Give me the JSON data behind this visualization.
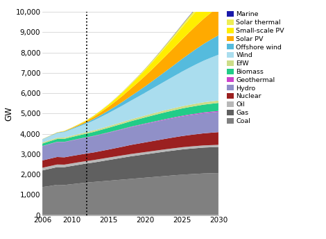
{
  "years": [
    2006,
    2007,
    2008,
    2009,
    2010,
    2011,
    2012,
    2013,
    2014,
    2015,
    2016,
    2017,
    2018,
    2019,
    2020,
    2021,
    2022,
    2023,
    2024,
    2025,
    2026,
    2027,
    2028,
    2029,
    2030
  ],
  "series": {
    "Coal": [
      1380,
      1430,
      1490,
      1480,
      1520,
      1560,
      1600,
      1630,
      1660,
      1690,
      1720,
      1750,
      1780,
      1810,
      1840,
      1870,
      1900,
      1930,
      1960,
      1990,
      2010,
      2030,
      2050,
      2060,
      2070
    ],
    "Gas": [
      820,
      850,
      870,
      880,
      900,
      920,
      940,
      960,
      990,
      1020,
      1050,
      1080,
      1110,
      1130,
      1150,
      1170,
      1190,
      1210,
      1225,
      1240,
      1255,
      1265,
      1275,
      1280,
      1285
    ],
    "Oil": [
      130,
      130,
      130,
      125,
      125,
      125,
      120,
      120,
      120,
      120,
      118,
      116,
      115,
      114,
      113,
      112,
      111,
      110,
      110,
      109,
      108,
      107,
      106,
      105,
      104
    ],
    "Nuclear": [
      360,
      365,
      370,
      360,
      365,
      365,
      370,
      375,
      385,
      395,
      410,
      425,
      445,
      460,
      475,
      490,
      505,
      520,
      535,
      550,
      565,
      580,
      595,
      610,
      625
    ],
    "Hydro": [
      700,
      720,
      735,
      748,
      760,
      775,
      785,
      800,
      815,
      830,
      845,
      860,
      875,
      890,
      905,
      918,
      930,
      942,
      952,
      962,
      972,
      980,
      988,
      994,
      999
    ],
    "Geothermal": [
      10,
      11,
      12,
      12,
      13,
      14,
      14,
      15,
      16,
      17,
      18,
      20,
      21,
      23,
      25,
      27,
      29,
      31,
      33,
      35,
      37,
      39,
      41,
      43,
      45
    ],
    "Biomass": [
      120,
      130,
      140,
      150,
      160,
      170,
      180,
      195,
      210,
      225,
      240,
      255,
      270,
      285,
      300,
      315,
      328,
      340,
      350,
      360,
      368,
      376,
      383,
      389,
      394
    ],
    "EfW": [
      55,
      58,
      61,
      63,
      65,
      68,
      70,
      73,
      76,
      79,
      82,
      85,
      88,
      91,
      94,
      97,
      100,
      103,
      106,
      109,
      111,
      113,
      115,
      117,
      118
    ],
    "Wind": [
      150,
      185,
      225,
      270,
      315,
      365,
      420,
      490,
      565,
      645,
      730,
      820,
      915,
      1015,
      1120,
      1230,
      1345,
      1460,
      1580,
      1700,
      1820,
      1940,
      2050,
      2155,
      2255
    ],
    "Offshore wind": [
      10,
      15,
      22,
      28,
      35,
      45,
      58,
      75,
      95,
      120,
      150,
      185,
      225,
      268,
      315,
      368,
      425,
      485,
      550,
      620,
      690,
      760,
      828,
      893,
      955
    ],
    "Solar PV": [
      4,
      6,
      10,
      17,
      28,
      45,
      68,
      100,
      140,
      185,
      240,
      300,
      365,
      435,
      510,
      592,
      680,
      772,
      865,
      960,
      1055,
      1148,
      1238,
      1323,
      1405
    ],
    "Small-scale PV": [
      2,
      4,
      6,
      10,
      16,
      24,
      37,
      54,
      75,
      100,
      130,
      164,
      202,
      244,
      290,
      340,
      394,
      452,
      513,
      578,
      644,
      710,
      775,
      838,
      898
    ],
    "Solar thermal": [
      2,
      3,
      4,
      5,
      6,
      8,
      10,
      13,
      17,
      22,
      28,
      35,
      43,
      52,
      62,
      73,
      85,
      98,
      112,
      127,
      142,
      157,
      172,
      186,
      200
    ],
    "Marine": [
      0,
      0,
      0,
      0,
      1,
      1,
      1,
      1,
      2,
      2,
      3,
      3,
      4,
      5,
      6,
      8,
      10,
      12,
      15,
      18,
      21,
      24,
      28,
      32,
      36
    ]
  },
  "colors": {
    "Coal": "#808080",
    "Gas": "#606060",
    "Oil": "#b8b8b8",
    "Nuclear": "#9b2020",
    "Hydro": "#9090c8",
    "Geothermal": "#cc44cc",
    "Biomass": "#22cc88",
    "EfW": "#ccdd88",
    "Wind": "#aaddee",
    "Offshore wind": "#55bbdd",
    "Solar PV": "#ffaa00",
    "Small-scale PV": "#ffee00",
    "Solar thermal": "#eeee55",
    "Marine": "#1a1aaa"
  },
  "ylabel": "GW",
  "ylim": [
    0,
    10000
  ],
  "yticks": [
    0,
    1000,
    2000,
    3000,
    4000,
    5000,
    6000,
    7000,
    8000,
    9000,
    10000
  ],
  "xticks": [
    2006,
    2010,
    2015,
    2020,
    2025,
    2030
  ],
  "dotted_line_x": 2012,
  "figsize": [
    4.7,
    3.44
  ],
  "dpi": 100
}
